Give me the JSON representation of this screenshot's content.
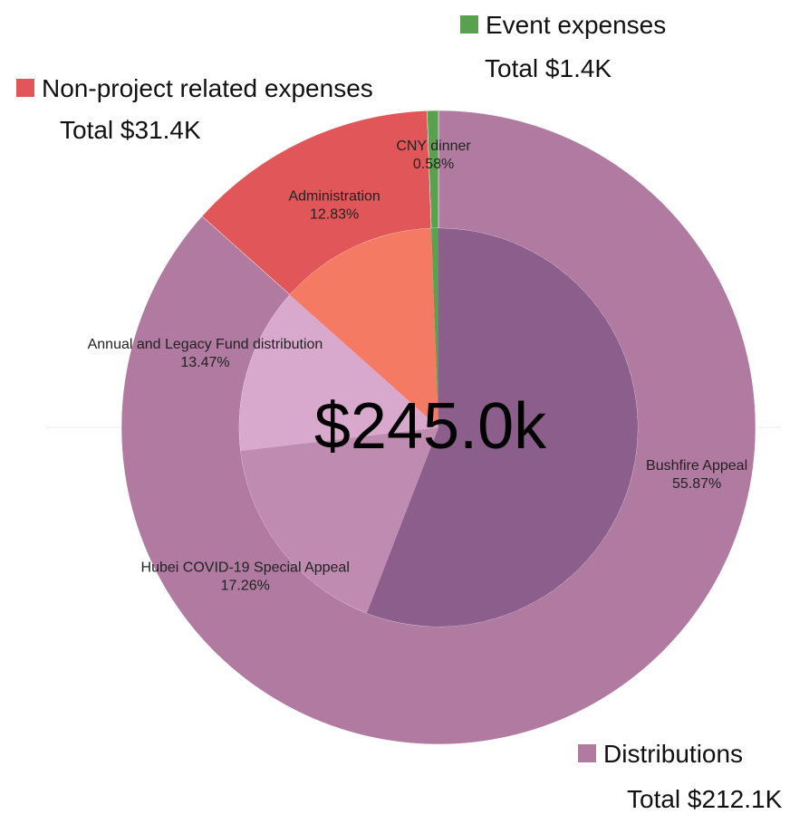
{
  "chart_data": {
    "type": "sunburst",
    "center_value": 245000,
    "center_label": "$245.0k",
    "groups": [
      {
        "name": "Distributions",
        "color": "#b07aa1",
        "total": 212100,
        "total_label": "Total $212.1K",
        "children": [
          {
            "name": "Bushfire Appeal",
            "color": "#8c5e8c",
            "value": 55.87,
            "value_label": "55.87%"
          },
          {
            "name": "Hubei COVID-19 Special Appeal",
            "color": "#c08bb0",
            "value": 17.26,
            "value_label": "17.26%"
          },
          {
            "name": "Annual and Legacy Fund distribution",
            "color": "#d9a9cd",
            "value": 13.47,
            "value_label": "13.47%"
          }
        ]
      },
      {
        "name": "Non-project related expenses",
        "color": "#e15759",
        "total": 31400,
        "total_label": "Total $31.4K",
        "children": [
          {
            "name": "Administration",
            "color": "#f57a64",
            "value": 12.83,
            "value_label": "12.83%"
          }
        ]
      },
      {
        "name": "Event expenses",
        "color": "#59a14f",
        "total": 1400,
        "total_label": "Total $1.4K",
        "children": [
          {
            "name": "CNY dinner",
            "color": "#59a14f",
            "value": 0.58,
            "value_label": "0.58%"
          }
        ]
      }
    ]
  }
}
